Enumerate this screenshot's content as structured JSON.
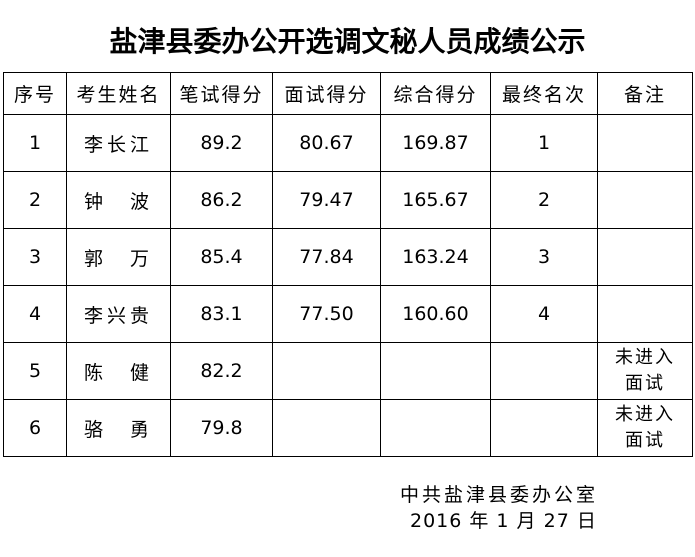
{
  "title": "盐津县委办公开选调文秘人员成绩公示",
  "table": {
    "headers": [
      "序号",
      "考生姓名",
      "笔试得分",
      "面试得分",
      "综合得分",
      "最终名次",
      "备注"
    ],
    "rows": [
      [
        "1",
        "李长江",
        "89.2",
        "80.67",
        "169.87",
        "1",
        ""
      ],
      [
        "2",
        "钟　波",
        "86.2",
        "79.47",
        "165.67",
        "2",
        ""
      ],
      [
        "3",
        "郭　万",
        "85.4",
        "77.84",
        "163.24",
        "3",
        ""
      ],
      [
        "4",
        "李兴贵",
        "83.1",
        "77.50",
        "160.60",
        "4",
        ""
      ],
      [
        "5",
        "陈　健",
        "82.2",
        "",
        "",
        "",
        "未进入\n面试"
      ],
      [
        "6",
        "骆　勇",
        "79.8",
        "",
        "",
        "",
        "未进入\n面试"
      ]
    ]
  },
  "footer": {
    "org": "中共盐津县委办公室",
    "date": "2016 年 1 月 27 日"
  }
}
